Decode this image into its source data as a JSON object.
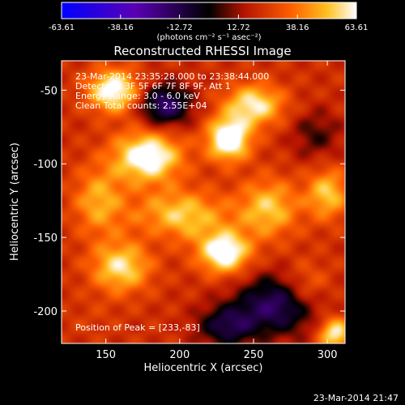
{
  "chart_data": {
    "type": "heatmap",
    "title": "Reconstructed RHESSI Image",
    "xlabel": "Heliocentric X (arcsec)",
    "ylabel": "Heliocentric Y (arcsec)",
    "xlim": [
      120,
      312
    ],
    "ylim": [
      -222,
      -30
    ],
    "x_ticks": [
      150,
      200,
      250,
      300
    ],
    "y_ticks": [
      -50,
      -100,
      -150,
      -200
    ],
    "colorbar": {
      "range": [
        -63.61,
        63.61
      ],
      "tick_labels": [
        "-63.61",
        "-38.16",
        "-12.72",
        "12.72",
        "38.16",
        "63.61"
      ],
      "unit_label": "(photons cm⁻² s⁻¹ asec⁻²)"
    },
    "annotations": {
      "time_range": "23-Mar-2014 23:35:28.000 to 23:38:44.000",
      "detectors": "Detectors: 3F 5F 6F 7F 8F 9F, Att 1",
      "energy_range": "Energy Range: 3.0 - 6.0 keV",
      "clean_counts": "Clean     Total counts: 2.55E+04",
      "peak_position": "Position of Peak = [233,-83]"
    },
    "peak": {
      "x": 233,
      "y": -83
    },
    "sources": [
      {
        "x": 233,
        "y": -83,
        "intensity": 63,
        "sx": 10,
        "sy": 10
      },
      {
        "x": 178,
        "y": -95,
        "intensity": 58,
        "sx": 16,
        "sy": 12
      },
      {
        "x": 155,
        "y": -50,
        "intensity": 55,
        "sx": 12,
        "sy": 10
      },
      {
        "x": 250,
        "y": -60,
        "intensity": 48,
        "sx": 14,
        "sy": 10
      },
      {
        "x": 230,
        "y": -160,
        "intensity": 58,
        "sx": 12,
        "sy": 10
      },
      {
        "x": 160,
        "y": -170,
        "intensity": 45,
        "sx": 14,
        "sy": 12
      },
      {
        "x": 200,
        "y": -135,
        "intensity": 42,
        "sx": 22,
        "sy": 12
      },
      {
        "x": 260,
        "y": -130,
        "intensity": 40,
        "sx": 14,
        "sy": 14
      },
      {
        "x": 300,
        "y": -120,
        "intensity": 40,
        "sx": 10,
        "sy": 12
      },
      {
        "x": 285,
        "y": -185,
        "intensity": 32,
        "sx": 12,
        "sy": 12
      },
      {
        "x": 305,
        "y": -215,
        "intensity": 50,
        "sx": 8,
        "sy": 8
      },
      {
        "x": 145,
        "y": -125,
        "intensity": 35,
        "sx": 12,
        "sy": 16
      },
      {
        "x": 190,
        "y": -60,
        "intensity": -55,
        "sx": 12,
        "sy": 10
      },
      {
        "x": 185,
        "y": -145,
        "intensity": -18,
        "sx": 10,
        "sy": 10
      },
      {
        "x": 268,
        "y": -195,
        "intensity": -55,
        "sx": 20,
        "sy": 14
      },
      {
        "x": 232,
        "y": -210,
        "intensity": -45,
        "sx": 14,
        "sy": 10
      },
      {
        "x": 292,
        "y": -80,
        "intensity": -30,
        "sx": 12,
        "sy": 12
      },
      {
        "x": 140,
        "y": -205,
        "intensity": -10,
        "sx": 14,
        "sy": 10
      }
    ],
    "background_level": 22
  },
  "footer": {
    "date": "23-Mar-2014 21:47"
  }
}
